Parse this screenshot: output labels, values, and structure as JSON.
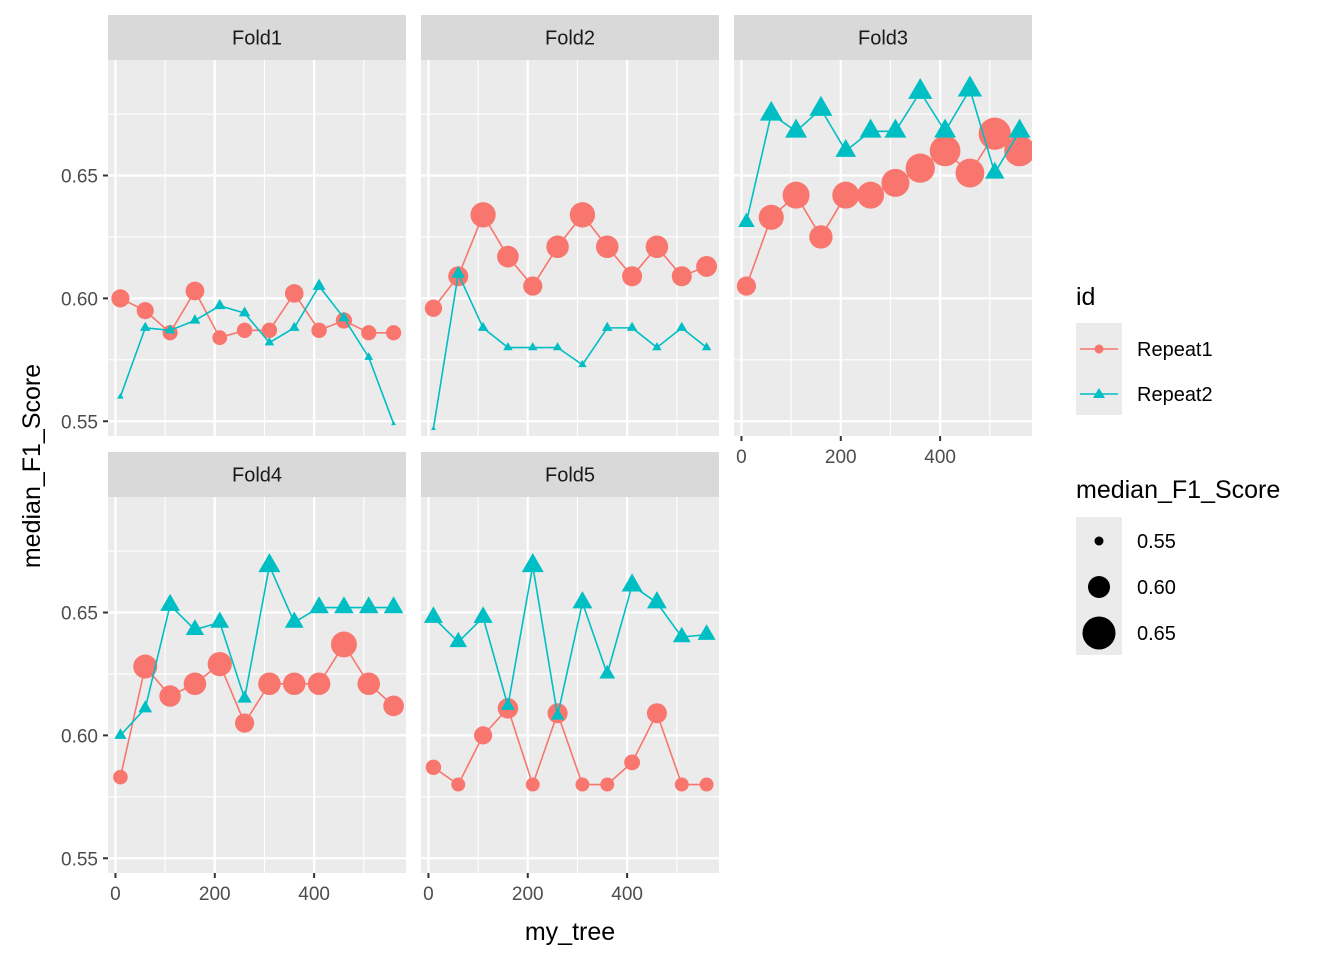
{
  "chart_data": {
    "type": "scatter",
    "xlabel": "my_tree",
    "ylabel": "median_F1_Score",
    "x_ticks": [
      0,
      200,
      400
    ],
    "y_ticks": [
      0.55,
      0.6,
      0.65
    ],
    "y_tick_labels": [
      "0.55",
      "0.60",
      "0.65"
    ],
    "xlim": [
      -15,
      585
    ],
    "ylim": [
      0.544,
      0.697
    ],
    "grid": true,
    "legend_placement": "right",
    "colors": {
      "Repeat1": "#F8766D",
      "Repeat2": "#00BFC4"
    },
    "panels": [
      {
        "name": "Fold1",
        "series": [
          {
            "name": "Repeat1",
            "x": [
              10,
              60,
              110,
              160,
              210,
              260,
              310,
              360,
              410,
              460,
              510,
              560
            ],
            "y": [
              0.6,
              0.595,
              0.586,
              0.603,
              0.584,
              0.587,
              0.587,
              0.602,
              0.587,
              0.591,
              0.586,
              0.586
            ]
          },
          {
            "name": "Repeat2",
            "x": [
              10,
              60,
              110,
              160,
              210,
              260,
              310,
              360,
              410,
              460,
              510,
              560
            ],
            "y": [
              0.56,
              0.588,
              0.587,
              0.591,
              0.597,
              0.594,
              0.582,
              0.588,
              0.605,
              0.592,
              0.576,
              0.549
            ]
          }
        ]
      },
      {
        "name": "Fold2",
        "series": [
          {
            "name": "Repeat1",
            "x": [
              10,
              60,
              110,
              160,
              210,
              260,
              310,
              360,
              410,
              460,
              510,
              560
            ],
            "y": [
              0.596,
              0.609,
              0.634,
              0.617,
              0.605,
              0.621,
              0.634,
              0.621,
              0.609,
              0.621,
              0.609,
              0.613
            ]
          },
          {
            "name": "Repeat2",
            "x": [
              10,
              60,
              110,
              160,
              210,
              260,
              310,
              360,
              410,
              460,
              510,
              560
            ],
            "y": [
              0.547,
              0.61,
              0.588,
              0.58,
              0.58,
              0.58,
              0.573,
              0.588,
              0.588,
              0.58,
              0.588,
              0.58
            ]
          }
        ]
      },
      {
        "name": "Fold3",
        "series": [
          {
            "name": "Repeat1",
            "x": [
              10,
              60,
              110,
              160,
              210,
              260,
              310,
              360,
              410,
              460,
              510,
              560
            ],
            "y": [
              0.605,
              0.633,
              0.642,
              0.625,
              0.642,
              0.642,
              0.647,
              0.653,
              0.66,
              0.651,
              0.667,
              0.66
            ]
          },
          {
            "name": "Repeat2",
            "x": [
              10,
              60,
              110,
              160,
              210,
              260,
              310,
              360,
              410,
              460,
              510,
              560
            ],
            "y": [
              0.631,
              0.675,
              0.668,
              0.677,
              0.66,
              0.668,
              0.668,
              0.684,
              0.668,
              0.685,
              0.651,
              0.668
            ]
          }
        ]
      },
      {
        "name": "Fold4",
        "series": [
          {
            "name": "Repeat1",
            "x": [
              10,
              60,
              110,
              160,
              210,
              260,
              310,
              360,
              410,
              460,
              510,
              560
            ],
            "y": [
              0.583,
              0.628,
              0.616,
              0.621,
              0.629,
              0.605,
              0.621,
              0.621,
              0.621,
              0.637,
              0.621,
              0.612
            ]
          },
          {
            "name": "Repeat2",
            "x": [
              10,
              60,
              110,
              160,
              210,
              260,
              310,
              360,
              410,
              460,
              510,
              560
            ],
            "y": [
              0.6,
              0.611,
              0.653,
              0.643,
              0.646,
              0.615,
              0.669,
              0.646,
              0.652,
              0.652,
              0.652,
              0.652
            ]
          }
        ]
      },
      {
        "name": "Fold5",
        "series": [
          {
            "name": "Repeat1",
            "x": [
              10,
              60,
              110,
              160,
              210,
              260,
              310,
              360,
              410,
              460,
              510,
              560
            ],
            "y": [
              0.587,
              0.58,
              0.6,
              0.611,
              0.58,
              0.609,
              0.58,
              0.58,
              0.589,
              0.609,
              0.58,
              0.58
            ]
          },
          {
            "name": "Repeat2",
            "x": [
              10,
              60,
              110,
              160,
              210,
              260,
              310,
              360,
              410,
              460,
              510,
              560
            ],
            "y": [
              0.648,
              0.638,
              0.648,
              0.612,
              0.669,
              0.608,
              0.654,
              0.625,
              0.661,
              0.654,
              0.64,
              0.641
            ]
          }
        ]
      }
    ],
    "legend": {
      "color_title": "id",
      "color_entries": [
        "Repeat1",
        "Repeat2"
      ],
      "size_title": "median_F1_Score",
      "size_entries": [
        "0.55",
        "0.60",
        "0.65"
      ],
      "size_values": [
        0.55,
        0.6,
        0.65
      ]
    }
  }
}
